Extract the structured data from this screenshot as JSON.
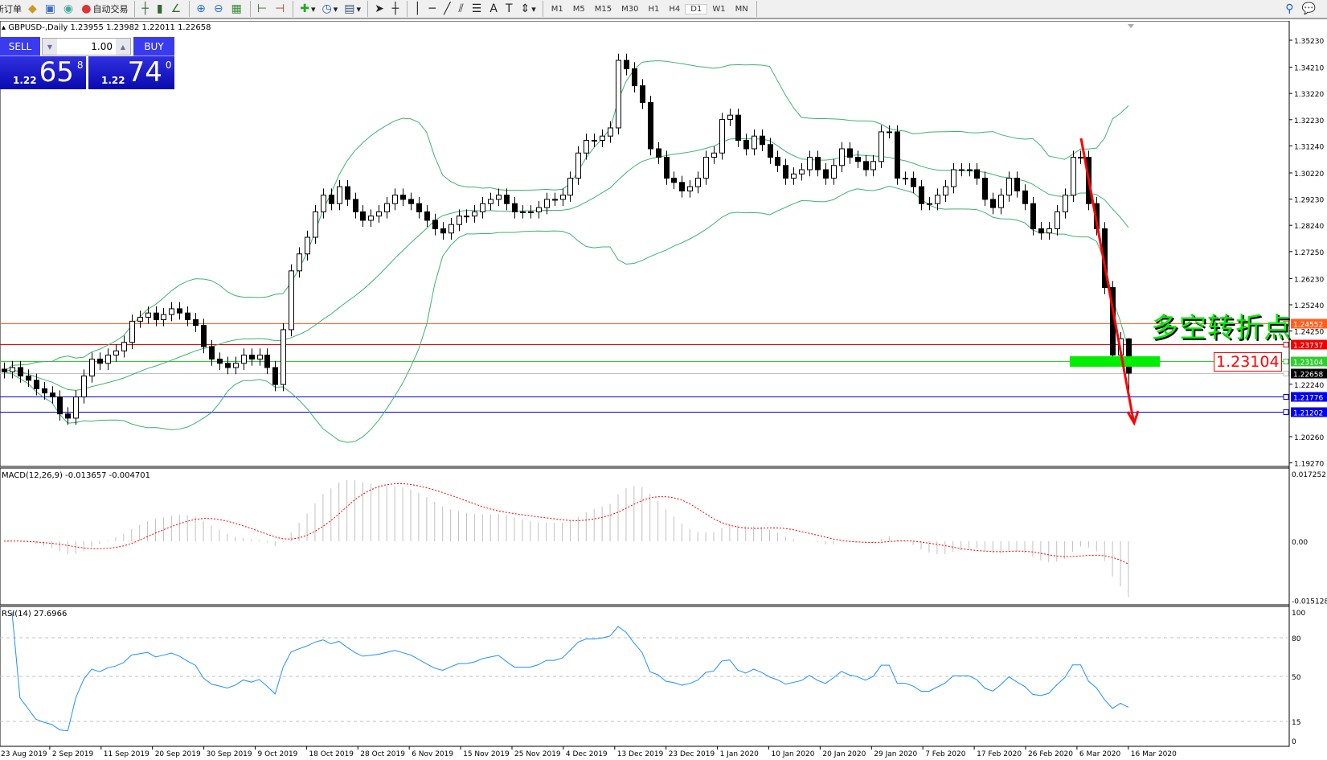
{
  "toolbar": {
    "new_order": "新订单",
    "auto_trading": "自动交易",
    "timeframes": [
      "M1",
      "M5",
      "M15",
      "M30",
      "H1",
      "H4",
      "D1",
      "W1",
      "MN"
    ],
    "active_timeframe": "D1"
  },
  "chart": {
    "title": "GBPUSD-,Daily  1.23955 1.23982 1.22011 1.22658",
    "symbol": "GBPUSD-",
    "period": "Daily"
  },
  "trade_panel": {
    "sell_label": "SELL",
    "buy_label": "BUY",
    "volume": "1.00",
    "sell_prefix": "1.22",
    "sell_big": "65",
    "sell_sup": "8",
    "buy_prefix": "1.22",
    "buy_big": "74",
    "buy_sup": "0"
  },
  "annotation": {
    "text": "多空转折点",
    "level_label": "1.23104",
    "text_color": "#00ee00",
    "arrow_color": "#ff0000",
    "zone_color": "#00ee00"
  },
  "chart_data": {
    "type": "candlestick",
    "price_axis_ticks": [
      "1.35230",
      "1.34210",
      "1.33220",
      "1.32230",
      "1.31240",
      "1.30220",
      "1.29230",
      "1.28240",
      "1.27250",
      "1.26230",
      "1.25240",
      "1.24250",
      "1.22240",
      "1.20260",
      "1.19270"
    ],
    "horizontal_lines": [
      {
        "price": "1.24552",
        "color": "#ff6020"
      },
      {
        "price": "1.23737",
        "color": "#ee0000"
      },
      {
        "price": "1.23104",
        "color": "#33cc33"
      },
      {
        "price": "1.22658",
        "color": "#000000",
        "line_color": "#c0c0c0"
      },
      {
        "price": "1.21776",
        "color": "#0000ee"
      },
      {
        "price": "1.21202",
        "color": "#0000ee"
      }
    ],
    "date_labels": [
      "23 Aug 2019",
      "2 Sep 2019",
      "11 Sep 2019",
      "20 Sep 2019",
      "30 Sep 2019",
      "9 Oct 2019",
      "18 Oct 2019",
      "28 Oct 2019",
      "6 Nov 2019",
      "15 Nov 2019",
      "25 Nov 2019",
      "4 Dec 2019",
      "13 Dec 2019",
      "23 Dec 2019",
      "1 Jan 2020",
      "10 Jan 2020",
      "20 Jan 2020",
      "29 Jan 2020",
      "7 Feb 2020",
      "17 Feb 2020",
      "26 Feb 2020",
      "6 Mar 2020",
      "16 Mar 2020"
    ],
    "close": [
      1.2271,
      1.2287,
      1.2255,
      1.2239,
      1.2207,
      1.2191,
      1.2176,
      1.2112,
      1.2096,
      1.2176,
      1.2255,
      1.2319,
      1.2303,
      1.2334,
      1.235,
      1.2382,
      1.2462,
      1.2477,
      1.2493,
      1.2468,
      1.2487,
      1.2509,
      1.2493,
      1.2468,
      1.2446,
      1.2366,
      1.2319,
      1.2303,
      1.2287,
      1.2303,
      1.2334,
      1.2319,
      1.2334,
      1.2287,
      1.2223,
      1.243,
      1.2652,
      1.2716,
      1.2779,
      1.2875,
      1.2938,
      1.2906,
      1.297,
      1.2922,
      1.2875,
      1.2843,
      1.2859,
      1.2875,
      1.2906,
      1.2938,
      1.2922,
      1.2906,
      1.2875,
      1.2843,
      1.2811,
      1.2795,
      1.2827,
      1.2859,
      1.2859,
      1.2875,
      1.2906,
      1.2922,
      1.2938,
      1.2906,
      1.2875,
      1.2875,
      1.2875,
      1.2891,
      1.2922,
      1.2922,
      1.2938,
      1.3002,
      1.3097,
      1.3145,
      1.3145,
      1.3161,
      1.3192,
      1.3447,
      1.3415,
      1.3351,
      1.3288,
      1.3113,
      1.3081,
      1.3002,
      1.2986,
      1.2954,
      1.297,
      1.3002,
      1.3081,
      1.3097,
      1.3224,
      1.324,
      1.3145,
      1.3113,
      1.3161,
      1.3129,
      1.3081,
      1.305,
      1.3002,
      1.3018,
      1.3034,
      1.3081,
      1.3034,
      1.3002,
      1.305,
      1.3113,
      1.3081,
      1.3065,
      1.3034,
      1.3065,
      1.3177,
      1.3177,
      1.3002,
      1.3002,
      1.297,
      1.2906,
      1.2906,
      1.2938,
      1.297,
      1.3034,
      1.3034,
      1.3034,
      1.3002,
      1.2922,
      1.2891,
      1.2938,
      1.3002,
      1.2954,
      1.2906,
      1.2811,
      1.2795,
      1.2811,
      1.2875,
      1.2938,
      1.3081,
      1.3081,
      1.2906,
      1.2811,
      1.2589,
      1.2334,
      1.2396,
      1.22658
    ],
    "last_bar": {
      "open": 1.23955,
      "high": 1.23982,
      "low": 1.22011,
      "close": 1.22658
    },
    "bollinger": {
      "period": 20,
      "deviation": 2,
      "color": "#3cb371"
    },
    "macd": {
      "label": "MACD(12,26,9) -0.013657 -0.004701",
      "range": [
        -0.015128,
        0.017252
      ],
      "ticks": [
        "0.017252",
        "0.00",
        "-0.015128"
      ],
      "histogram_color": "#c0c0c0",
      "signal_color": "#ff0000"
    },
    "rsi": {
      "label": "RSI(14) 27.6966",
      "period": 14,
      "range": [
        0,
        100
      ],
      "levels": [
        80,
        50,
        15
      ],
      "ticks": [
        "100",
        "80",
        "50",
        "15",
        "0"
      ],
      "color": "#1e90ff"
    }
  }
}
